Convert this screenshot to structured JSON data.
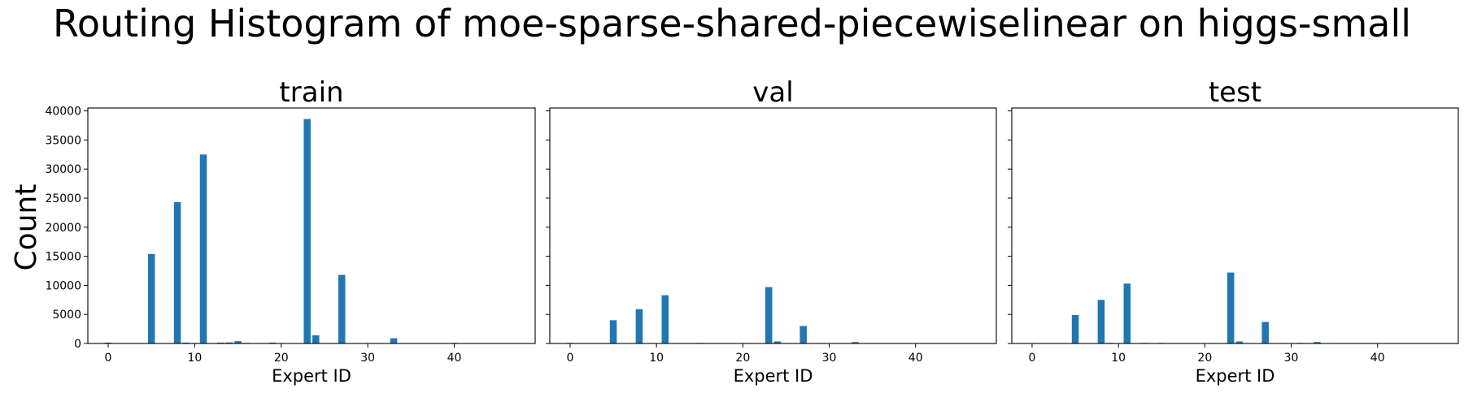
{
  "figure": {
    "title": "Routing Histogram of moe-sparse-shared-piecewiselinear on higgs-small",
    "ylabel": "Count",
    "bar_color": "#1f77b4"
  },
  "chart_data": [
    {
      "type": "bar",
      "title": "train",
      "xlabel": "Expert ID",
      "ylabel": "Count",
      "xlim": [
        -2.35,
        49.35
      ],
      "ylim": [
        0,
        40500
      ],
      "xticks": [
        0,
        10,
        20,
        30,
        40
      ],
      "yticks": [
        0,
        5000,
        10000,
        15000,
        20000,
        25000,
        30000,
        35000,
        40000
      ],
      "x": [
        0,
        5,
        8,
        9,
        10,
        11,
        13,
        14,
        15,
        16,
        19,
        20,
        23,
        24,
        27,
        31,
        33,
        40
      ],
      "values": [
        150,
        15400,
        24300,
        150,
        80,
        32500,
        150,
        180,
        400,
        100,
        150,
        50,
        38600,
        1400,
        11800,
        80,
        900,
        100
      ]
    },
    {
      "type": "bar",
      "title": "val",
      "xlabel": "Expert ID",
      "ylabel": "",
      "xlim": [
        -2.35,
        49.35
      ],
      "ylim": [
        0,
        40500
      ],
      "xticks": [
        0,
        10,
        20,
        30,
        40
      ],
      "yticks": [
        0,
        5000,
        10000,
        15000,
        20000,
        25000,
        30000,
        35000,
        40000
      ],
      "x": [
        0,
        5,
        8,
        11,
        15,
        23,
        24,
        27,
        33
      ],
      "values": [
        100,
        4000,
        5900,
        8300,
        100,
        9700,
        350,
        3000,
        250
      ]
    },
    {
      "type": "bar",
      "title": "test",
      "xlabel": "Expert ID",
      "ylabel": "",
      "xlim": [
        -2.35,
        49.35
      ],
      "ylim": [
        0,
        40500
      ],
      "xticks": [
        0,
        10,
        20,
        30,
        40
      ],
      "yticks": [
        0,
        5000,
        10000,
        15000,
        20000,
        25000,
        30000,
        35000,
        40000
      ],
      "x": [
        5,
        8,
        9,
        11,
        13,
        15,
        23,
        24,
        27,
        31,
        33
      ],
      "values": [
        4900,
        7500,
        100,
        10300,
        100,
        100,
        12200,
        350,
        3700,
        100,
        250
      ]
    }
  ]
}
